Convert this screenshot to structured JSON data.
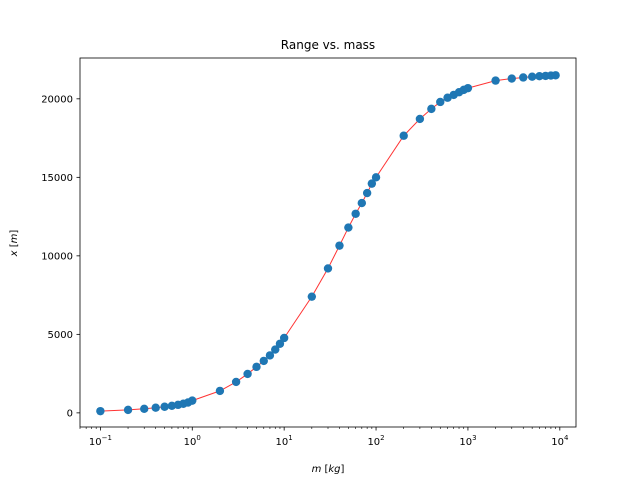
{
  "chart_data": {
    "type": "scatter",
    "title": "Range vs. mass",
    "xlabel": "m [kg]",
    "ylabel": "x [m]",
    "xscale": "log",
    "xlim": [
      0.06,
      15000
    ],
    "ylim": [
      -900,
      22600
    ],
    "grid": false,
    "legend": "none",
    "x_ticks": [
      {
        "value": 0.1,
        "base": "10",
        "exp": "−1"
      },
      {
        "value": 1,
        "base": "10",
        "exp": "0"
      },
      {
        "value": 10,
        "base": "10",
        "exp": "1"
      },
      {
        "value": 100,
        "base": "10",
        "exp": "2"
      },
      {
        "value": 1000,
        "base": "10",
        "exp": "3"
      },
      {
        "value": 10000,
        "base": "10",
        "exp": "4"
      }
    ],
    "y_ticks": [
      {
        "value": 0,
        "label": "0"
      },
      {
        "value": 5000,
        "label": "5000"
      },
      {
        "value": 10000,
        "label": "10000"
      },
      {
        "value": 15000,
        "label": "15000"
      },
      {
        "value": 20000,
        "label": "20000"
      }
    ],
    "colors": {
      "markers": "#1f77b4",
      "line": "#ff0000"
    },
    "series": [
      {
        "x": [
          0.1,
          0.2,
          0.3,
          0.4,
          0.5,
          0.6,
          0.7,
          0.8,
          0.9,
          1,
          2,
          3,
          4,
          5,
          6,
          7,
          8,
          9,
          10,
          20,
          30,
          40,
          50,
          60,
          70,
          80,
          90,
          100,
          200,
          300,
          400,
          500,
          600,
          700,
          800,
          900,
          1000,
          2000,
          3000,
          4000,
          5000,
          6000,
          7000,
          8000,
          9000
        ],
        "y": [
          110,
          190,
          260,
          330,
          390,
          450,
          510,
          580,
          660,
          780,
          1400,
          1970,
          2480,
          2930,
          3310,
          3660,
          4030,
          4400,
          4770,
          7400,
          9200,
          10650,
          11800,
          12680,
          13360,
          14000,
          14600,
          15000,
          17650,
          18720,
          19360,
          19800,
          20070,
          20250,
          20420,
          20570,
          20680,
          21160,
          21290,
          21360,
          21410,
          21440,
          21460,
          21480,
          21500
        ]
      }
    ]
  }
}
